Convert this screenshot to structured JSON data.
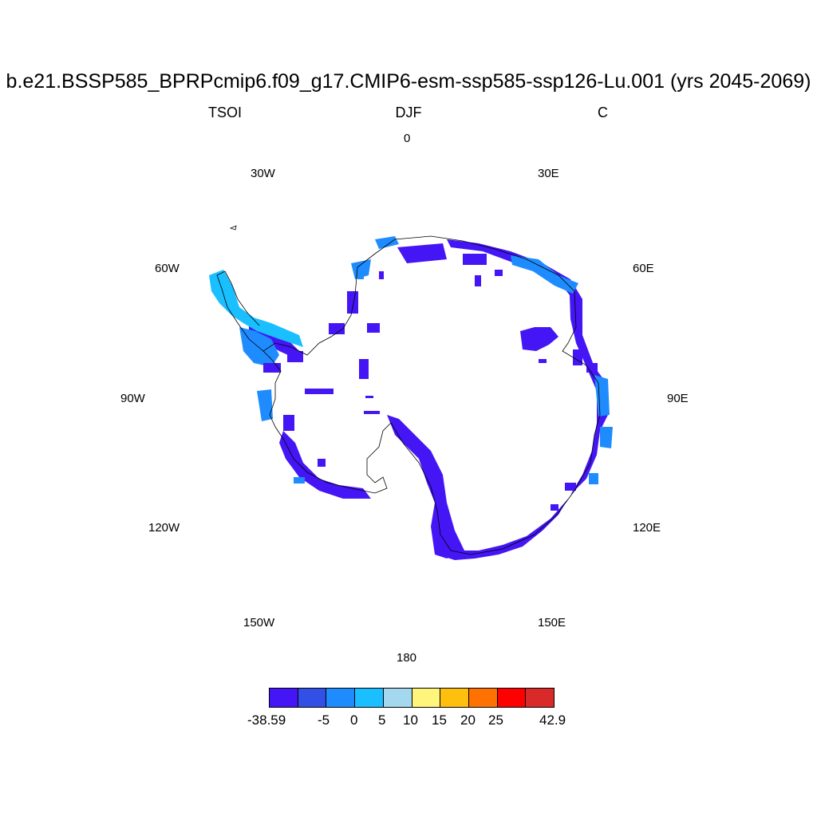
{
  "header": {
    "title": "b.e21.BSSP585_BPRPcmip6.f09_g17.CMIP6-esm-ssp585-ssp126-Lu.001 (yrs 2045-2069)",
    "variable": "TSOI",
    "season": "DJF",
    "units": "C"
  },
  "map": {
    "projection": "south-polar-stereographic",
    "longitude_labels": [
      "0",
      "30E",
      "60E",
      "90E",
      "120E",
      "150E",
      "180",
      "150W",
      "120W",
      "90W",
      "60W",
      "30W"
    ],
    "land_fill_note_colors": {
      "coast_line": "#000000",
      "main": "#4416f5"
    }
  },
  "colorbar": {
    "colors": [
      "#4416f5",
      "#3250e6",
      "#1e8cff",
      "#19bfff",
      "#a3d8ef",
      "#fff57a",
      "#ffbf0f",
      "#ff7100",
      "#ff0000",
      "#d92929"
    ],
    "labels": [
      "-38.59",
      "-5",
      "0",
      "5",
      "10",
      "15",
      "20",
      "25",
      "42.9"
    ]
  }
}
